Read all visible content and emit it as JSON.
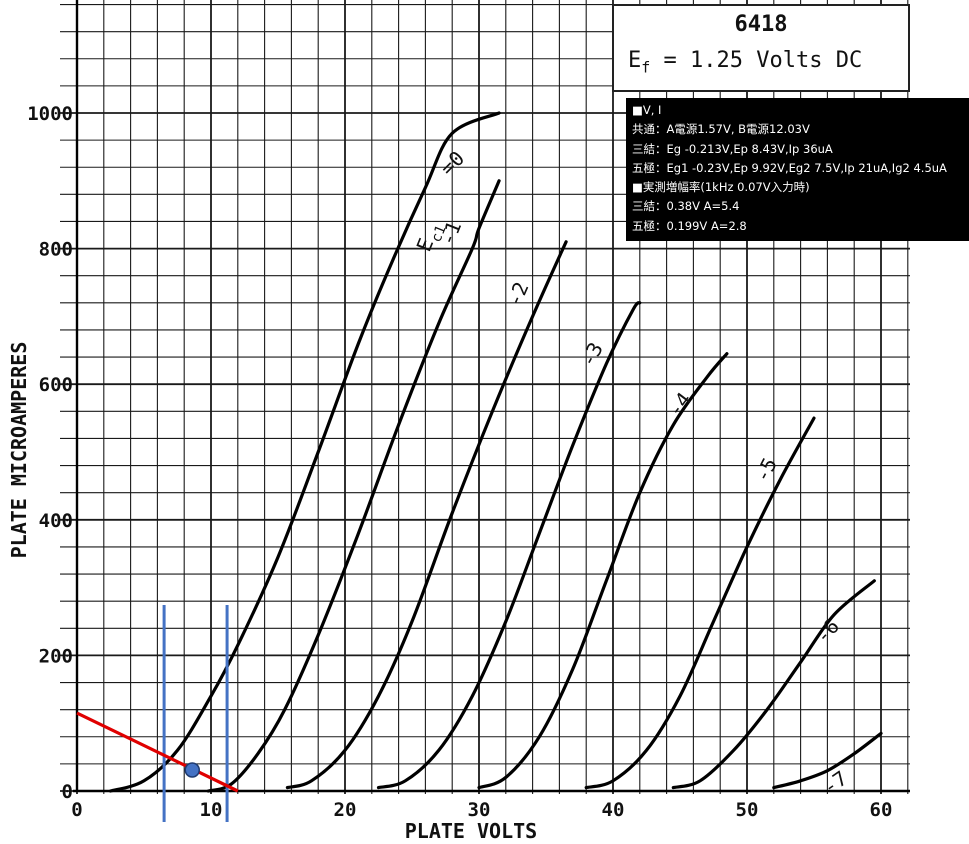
{
  "title": {
    "model": "6418",
    "ef_prefix": "E",
    "ef_sub": "f",
    "ef_rest": " = 1.25 Volts DC"
  },
  "note": {
    "lines": [
      "■V, I",
      "共通：A電源1.57V, B電源12.03V",
      "三結：Eg -0.213V,Ep 8.43V,Ip 36uA",
      "五極：Eg1 -0.23V,Ep 9.92V,Eg2 7.5V,Ip 21uA,Ig2 4.5uA",
      "■実測増幅率(1kHz 0.07V入力時)",
      "三結：0.38V A=5.4",
      "五極：0.199V A=2.8"
    ]
  },
  "chart_data": {
    "type": "line",
    "title": "",
    "xlabel": "PLATE VOLTS",
    "ylabel": "PLATE MICROAMPERES",
    "xlim": [
      0,
      60
    ],
    "ylim": [
      0,
      1000
    ],
    "x_ticks": [
      0,
      10,
      20,
      30,
      40,
      50,
      60
    ],
    "y_ticks": [
      0,
      200,
      400,
      600,
      800,
      1000
    ],
    "grid": true,
    "legend": "none",
    "series": [
      {
        "name": "Ec1 =0",
        "label": "=0",
        "points": [
          [
            2.5,
            0
          ],
          [
            5,
            15
          ],
          [
            7.5,
            60
          ],
          [
            10,
            140
          ],
          [
            12,
            215
          ],
          [
            15,
            345
          ],
          [
            18,
            500
          ],
          [
            21,
            660
          ],
          [
            23.5,
            780
          ],
          [
            26,
            890
          ],
          [
            28,
            970
          ],
          [
            31.5,
            1000
          ]
        ]
      },
      {
        "name": "-1",
        "label": "-1",
        "points": [
          [
            9.8,
            0
          ],
          [
            11.5,
            10
          ],
          [
            13.5,
            55
          ],
          [
            15.5,
            120
          ],
          [
            18,
            230
          ],
          [
            21,
            380
          ],
          [
            24,
            540
          ],
          [
            27,
            690
          ],
          [
            29.5,
            800
          ],
          [
            30,
            830
          ],
          [
            31.5,
            900
          ]
        ]
      },
      {
        "name": "-2",
        "label": "-2",
        "points": [
          [
            15.7,
            5
          ],
          [
            17.5,
            15
          ],
          [
            20,
            60
          ],
          [
            22.5,
            140
          ],
          [
            25,
            250
          ],
          [
            28,
            410
          ],
          [
            31,
            560
          ],
          [
            34,
            700
          ],
          [
            36.5,
            810
          ]
        ]
      },
      {
        "name": "-3",
        "label": "-3",
        "points": [
          [
            22.5,
            5
          ],
          [
            24.5,
            15
          ],
          [
            27,
            60
          ],
          [
            29.5,
            140
          ],
          [
            32,
            250
          ],
          [
            34.5,
            380
          ],
          [
            37,
            510
          ],
          [
            39.5,
            630
          ],
          [
            41.5,
            710
          ],
          [
            42,
            720
          ]
        ]
      },
      {
        "name": "-4",
        "label": "-4",
        "points": [
          [
            30,
            5
          ],
          [
            32,
            20
          ],
          [
            34.5,
            80
          ],
          [
            37,
            180
          ],
          [
            39.5,
            310
          ],
          [
            42,
            440
          ],
          [
            44.5,
            540
          ],
          [
            47,
            610
          ],
          [
            48.5,
            645
          ]
        ]
      },
      {
        "name": "-5",
        "label": "-5",
        "points": [
          [
            38,
            5
          ],
          [
            40,
            15
          ],
          [
            42.5,
            60
          ],
          [
            45,
            140
          ],
          [
            47.5,
            250
          ],
          [
            50,
            360
          ],
          [
            52.5,
            460
          ],
          [
            55,
            550
          ]
        ]
      },
      {
        "name": "-6",
        "label": "-6",
        "points": [
          [
            44.5,
            5
          ],
          [
            46.5,
            15
          ],
          [
            49,
            60
          ],
          [
            51.5,
            120
          ],
          [
            54,
            190
          ],
          [
            56.5,
            260
          ],
          [
            59.5,
            310
          ]
        ]
      },
      {
        "name": "-7",
        "label": "-7",
        "points": [
          [
            52,
            5
          ],
          [
            54,
            15
          ],
          [
            56,
            30
          ],
          [
            58,
            55
          ],
          [
            60,
            85
          ]
        ]
      }
    ],
    "annotations": {
      "load_line": [
        [
          0,
          115
        ],
        [
          12,
          0
        ]
      ],
      "operating_point": [
        8.6,
        31
      ],
      "vertical_markers": [
        6.5,
        11.2
      ]
    }
  }
}
